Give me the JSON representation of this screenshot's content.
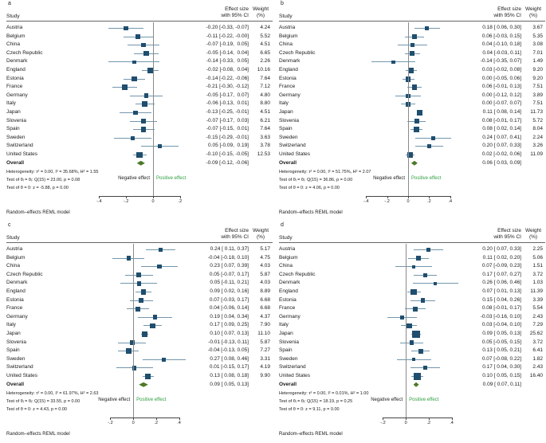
{
  "figure": {
    "colors": {
      "marker": "#1f4e6e",
      "ci": "#7396ad",
      "diamond": "#4c7a28",
      "positive": "#2e9e40",
      "zero": "#8a8a8a"
    }
  },
  "chart_data": [
    {
      "type": "forest",
      "letter": "a",
      "col_study": "Study",
      "col_effect": [
        "Effect size",
        "with 95% CI"
      ],
      "col_weight": [
        "Weight",
        "(%)"
      ],
      "xlim": [
        -0.52,
        0.26
      ],
      "tick_values": [
        -0.4,
        -0.2,
        0,
        0.2
      ],
      "tick_labels": [
        "-.4",
        "-.2",
        "0",
        ".2"
      ],
      "studies": [
        {
          "label": "Austria",
          "est": -0.2,
          "lo": -0.33,
          "hi": -0.07,
          "effect_label": "-0.20 [-0.33, -0.07]",
          "weight": 4.24
        },
        {
          "label": "Belgium",
          "est": -0.11,
          "lo": -0.22,
          "hi": -0.0,
          "effect_label": "-0.11 [-0.22, -0.00]",
          "weight": 5.52
        },
        {
          "label": "China",
          "est": -0.07,
          "lo": -0.19,
          "hi": 0.05,
          "effect_label": "-0.07 [-0.19,  0.05]",
          "weight": 4.51
        },
        {
          "label": "Czech Republic",
          "est": -0.05,
          "lo": -0.14,
          "hi": 0.04,
          "effect_label": "-0.05 [-0.14,  0.04]",
          "weight": 6.65
        },
        {
          "label": "Denmark",
          "est": -0.14,
          "lo": -0.33,
          "hi": 0.05,
          "effect_label": "-0.14 [-0.33,  0.05]",
          "weight": 2.26
        },
        {
          "label": "England",
          "est": -0.02,
          "lo": -0.08,
          "hi": 0.04,
          "effect_label": "-0.02 [-0.08,  0.04]",
          "weight": 10.16
        },
        {
          "label": "Estonia",
          "est": -0.14,
          "lo": -0.22,
          "hi": -0.06,
          "effect_label": "-0.14 [-0.22, -0.06]",
          "weight": 7.64
        },
        {
          "label": "France",
          "est": -0.21,
          "lo": -0.3,
          "hi": -0.12,
          "effect_label": "-0.21 [-0.30, -0.12]",
          "weight": 7.12
        },
        {
          "label": "Germany",
          "est": -0.05,
          "lo": -0.17,
          "hi": 0.07,
          "effect_label": "-0.05 [-0.17,  0.07]",
          "weight": 4.8
        },
        {
          "label": "Italy",
          "est": -0.06,
          "lo": -0.13,
          "hi": 0.01,
          "effect_label": "-0.06 [-0.13,  0.01]",
          "weight": 8.8
        },
        {
          "label": "Japan",
          "est": -0.13,
          "lo": -0.25,
          "hi": -0.01,
          "effect_label": "-0.13 [-0.25, -0.01]",
          "weight": 4.51
        },
        {
          "label": "Slovenia",
          "est": -0.07,
          "lo": -0.17,
          "hi": 0.03,
          "effect_label": "-0.07 [-0.17,  0.03]",
          "weight": 6.21
        },
        {
          "label": "Spain",
          "est": -0.07,
          "lo": -0.15,
          "hi": 0.01,
          "effect_label": "-0.07 [-0.15,  0.01]",
          "weight": 7.64
        },
        {
          "label": "Sweden",
          "est": -0.15,
          "lo": -0.29,
          "hi": -0.01,
          "effect_label": "-0.15 [-0.29, -0.01]",
          "weight": 3.63
        },
        {
          "label": "Switzerland",
          "est": 0.05,
          "lo": -0.09,
          "hi": 0.19,
          "effect_label": " 0.05 [-0.09,  0.19]",
          "weight": 3.78
        },
        {
          "label": "United States",
          "est": -0.1,
          "lo": -0.15,
          "hi": -0.05,
          "effect_label": "-0.10 [-0.15, -0.05]",
          "weight": 12.53
        }
      ],
      "overall": {
        "label": "Overall",
        "est": -0.09,
        "lo": -0.12,
        "hi": -0.06,
        "effect_label": "-0.09 [-0.12, -0.06]"
      },
      "stats": [
        "Heterogeneity: τ² = 0.00, I² = 35.68%, H² = 1.55",
        "Test of θᵢ = θⱼ: Q(15) = 23.00, p = 0.08",
        "Test of θ = 0: z = -5.88, p = 0.00"
      ],
      "neg_label": "Negative effect",
      "pos_label": "Positive effect",
      "footer": "Random–effects REML model"
    },
    {
      "type": "forest",
      "letter": "b",
      "col_study": "Study",
      "col_effect": [
        "Effect size",
        "with 95% CI"
      ],
      "col_weight": [
        "Weight",
        "(%)"
      ],
      "xlim": [
        -0.5,
        0.5
      ],
      "tick_values": [
        -0.4,
        -0.2,
        0,
        0.2,
        0.4
      ],
      "tick_labels": [
        "-.4",
        "-.2",
        "0",
        ".2",
        ".4"
      ],
      "studies": [
        {
          "label": "Austria",
          "est": 0.18,
          "lo": 0.06,
          "hi": 0.3,
          "effect_label": " 0.18 [ 0.06, 0.30]",
          "weight": 3.67
        },
        {
          "label": "Belgium",
          "est": 0.06,
          "lo": -0.03,
          "hi": 0.15,
          "effect_label": " 0.06 [-0.03, 0.15]",
          "weight": 5.35
        },
        {
          "label": "China",
          "est": 0.04,
          "lo": -0.1,
          "hi": 0.18,
          "effect_label": " 0.04 [-0.10, 0.18]",
          "weight": 3.08
        },
        {
          "label": "Czech Republic",
          "est": 0.04,
          "lo": -0.03,
          "hi": 0.11,
          "effect_label": " 0.04 [-0.03, 0.11]",
          "weight": 7.01
        },
        {
          "label": "Denmark",
          "est": -0.14,
          "lo": -0.35,
          "hi": 0.07,
          "effect_label": "-0.14 [-0.35, 0.07]",
          "weight": 1.49
        },
        {
          "label": "England",
          "est": 0.03,
          "lo": -0.02,
          "hi": 0.08,
          "effect_label": " 0.03 [-0.02, 0.08]",
          "weight": 9.2
        },
        {
          "label": "Estonia",
          "est": 0.0,
          "lo": -0.05,
          "hi": 0.06,
          "effect_label": " 0.00 [-0.05, 0.06]",
          "weight": 9.2
        },
        {
          "label": "France",
          "est": 0.06,
          "lo": -0.01,
          "hi": 0.13,
          "effect_label": " 0.06 [-0.01, 0.13]",
          "weight": 7.51
        },
        {
          "label": "Germany",
          "est": 0.0,
          "lo": -0.12,
          "hi": 0.12,
          "effect_label": " 0.00 [-0.12, 0.12]",
          "weight": 3.89
        },
        {
          "label": "Italy",
          "est": 0.0,
          "lo": -0.07,
          "hi": 0.07,
          "effect_label": " 0.00 [-0.07, 0.07]",
          "weight": 7.51
        },
        {
          "label": "Japan",
          "est": 0.11,
          "lo": 0.08,
          "hi": 0.14,
          "effect_label": " 0.11 [ 0.08, 0.14]",
          "weight": 11.73
        },
        {
          "label": "Slovenia",
          "est": 0.08,
          "lo": -0.01,
          "hi": 0.17,
          "effect_label": " 0.08 [-0.01, 0.17]",
          "weight": 5.72
        },
        {
          "label": "Spain",
          "est": 0.08,
          "lo": 0.02,
          "hi": 0.14,
          "effect_label": " 0.08 [ 0.02, 0.14]",
          "weight": 8.04
        },
        {
          "label": "Sweden",
          "est": 0.24,
          "lo": 0.07,
          "hi": 0.41,
          "effect_label": " 0.24 [ 0.07, 0.41]",
          "weight": 2.24
        },
        {
          "label": "Switzerland",
          "est": 0.2,
          "lo": 0.07,
          "hi": 0.33,
          "effect_label": " 0.20 [ 0.07, 0.33]",
          "weight": 3.26
        },
        {
          "label": "United States",
          "est": 0.02,
          "lo": -0.02,
          "hi": 0.06,
          "effect_label": " 0.02 [-0.02, 0.06]",
          "weight": 11.09
        }
      ],
      "overall": {
        "label": "Overall",
        "est": 0.06,
        "lo": 0.03,
        "hi": 0.09,
        "effect_label": " 0.06 [ 0.03, 0.09]"
      },
      "stats": [
        "Heterogeneity: τ² = 0.00, I² = 51.75%, H² = 2.07",
        "Test of θᵢ = θⱼ: Q(15) = 36.86, p = 0.00",
        "Test of θ = 0: z = 4.06, p = 0.00"
      ],
      "neg_label": "Negative effect",
      "pos_label": "Positive effect",
      "footer": "Random–effects REML model"
    },
    {
      "type": "forest",
      "letter": "c",
      "col_study": "Study",
      "col_effect": [
        "Effect size",
        "with 95% CI"
      ],
      "col_weight": [
        "Weight",
        "(%)"
      ],
      "xlim": [
        -0.44,
        0.48
      ],
      "tick_values": [
        -0.2,
        0,
        0.2,
        0.4
      ],
      "tick_labels": [
        "-.2",
        "0",
        ".2",
        ".4"
      ],
      "studies": [
        {
          "label": "Austria",
          "est": 0.24,
          "lo": 0.11,
          "hi": 0.37,
          "effect_label": " 0.24 [ 0.11, 0.37]",
          "weight": 5.17
        },
        {
          "label": "Belgium",
          "est": -0.04,
          "lo": -0.18,
          "hi": 0.1,
          "effect_label": "-0.04 [-0.18, 0.10]",
          "weight": 4.75
        },
        {
          "label": "China",
          "est": 0.23,
          "lo": 0.07,
          "hi": 0.39,
          "effect_label": " 0.23 [ 0.07, 0.39]",
          "weight": 4.03
        },
        {
          "label": "Czech Republic",
          "est": 0.05,
          "lo": -0.07,
          "hi": 0.17,
          "effect_label": " 0.05 [-0.07, 0.17]",
          "weight": 5.87
        },
        {
          "label": "Denmark",
          "est": 0.05,
          "lo": -0.11,
          "hi": 0.21,
          "effect_label": " 0.05 [-0.11, 0.21]",
          "weight": 4.03
        },
        {
          "label": "England",
          "est": 0.09,
          "lo": 0.02,
          "hi": 0.16,
          "effect_label": " 0.09 [ 0.02, 0.16]",
          "weight": 8.89
        },
        {
          "label": "Estonia",
          "est": 0.07,
          "lo": -0.03,
          "hi": 0.17,
          "effect_label": " 0.07 [-0.03, 0.17]",
          "weight": 6.68
        },
        {
          "label": "France",
          "est": 0.04,
          "lo": -0.06,
          "hi": 0.14,
          "effect_label": " 0.04 [-0.06, 0.14]",
          "weight": 6.68
        },
        {
          "label": "Germany",
          "est": 0.19,
          "lo": 0.04,
          "hi": 0.34,
          "effect_label": " 0.19 [ 0.04, 0.34]",
          "weight": 4.37
        },
        {
          "label": "Italy",
          "est": 0.17,
          "lo": 0.09,
          "hi": 0.25,
          "effect_label": " 0.17 [ 0.09, 0.25]",
          "weight": 7.9
        },
        {
          "label": "Japan",
          "est": 0.1,
          "lo": 0.07,
          "hi": 0.13,
          "effect_label": " 0.10 [ 0.07, 0.13]",
          "weight": 11.1
        },
        {
          "label": "Slovenia",
          "est": -0.01,
          "lo": -0.13,
          "hi": 0.11,
          "effect_label": "-0.01 [-0.13, 0.11]",
          "weight": 5.87
        },
        {
          "label": "Spain",
          "est": -0.04,
          "lo": -0.13,
          "hi": 0.05,
          "effect_label": "-0.04 [-0.13, 0.05]",
          "weight": 7.27
        },
        {
          "label": "Sweden",
          "est": 0.27,
          "lo": 0.08,
          "hi": 0.46,
          "effect_label": " 0.27 [ 0.08, 0.46]",
          "weight": 3.31
        },
        {
          "label": "Switzerland",
          "est": 0.01,
          "lo": -0.15,
          "hi": 0.17,
          "effect_label": " 0.01 [-0.15, 0.17]",
          "weight": 4.19
        },
        {
          "label": "United States",
          "est": 0.13,
          "lo": 0.08,
          "hi": 0.18,
          "effect_label": " 0.13 [ 0.08, 0.18]",
          "weight": 9.9
        }
      ],
      "overall": {
        "label": "Overall",
        "est": 0.09,
        "lo": 0.05,
        "hi": 0.13,
        "effect_label": " 0.09 [ 0.05, 0.13]"
      },
      "stats": [
        "Heterogeneity: τ² = 0.00, I² = 61.97%, H² = 2.63",
        "Test of θᵢ = θⱼ: Q(15) = 33.55, p = 0.00",
        "Test of θ = 0: z = 4.43, p = 0.00"
      ],
      "neg_label": "Negative effect",
      "pos_label": "Positive effect",
      "footer": "Random–effects REML model"
    },
    {
      "type": "forest",
      "letter": "d",
      "col_study": "Study",
      "col_effect": [
        "Effect size",
        "with 95% CI"
      ],
      "col_weight": [
        "Weight",
        "(%)"
      ],
      "xlim": [
        -0.44,
        0.48
      ],
      "tick_values": [
        -0.2,
        0,
        0.2,
        0.4
      ],
      "tick_labels": [
        "-.2",
        "0",
        ".2",
        ".4"
      ],
      "studies": [
        {
          "label": "Austria",
          "est": 0.2,
          "lo": 0.07,
          "hi": 0.33,
          "effect_label": " 0.20 [ 0.07, 0.33]",
          "weight": 2.25
        },
        {
          "label": "Belgium",
          "est": 0.11,
          "lo": 0.02,
          "hi": 0.2,
          "effect_label": " 0.11 [ 0.02, 0.20]",
          "weight": 5.06
        },
        {
          "label": "China",
          "est": 0.07,
          "lo": -0.09,
          "hi": 0.23,
          "effect_label": " 0.07 [-0.09, 0.23]",
          "weight": 1.51
        },
        {
          "label": "Czech Republic",
          "est": 0.17,
          "lo": 0.07,
          "hi": 0.27,
          "effect_label": " 0.17 [ 0.07, 0.27]",
          "weight": 3.72
        },
        {
          "label": "Denmark",
          "est": 0.26,
          "lo": 0.06,
          "hi": 0.46,
          "effect_label": " 0.26 [ 0.06, 0.46]",
          "weight": 1.03
        },
        {
          "label": "England",
          "est": 0.07,
          "lo": 0.01,
          "hi": 0.13,
          "effect_label": " 0.07 [ 0.01, 0.13]",
          "weight": 11.39
        },
        {
          "label": "Estonia",
          "est": 0.15,
          "lo": 0.04,
          "hi": 0.26,
          "effect_label": " 0.15 [ 0.04, 0.26]",
          "weight": 3.39
        },
        {
          "label": "France",
          "est": 0.08,
          "lo": -0.01,
          "hi": 0.17,
          "effect_label": " 0.08 [-0.01, 0.17]",
          "weight": 5.54
        },
        {
          "label": "Germany",
          "est": -0.03,
          "lo": -0.16,
          "hi": 0.1,
          "effect_label": "-0.03 [-0.16, 0.10]",
          "weight": 2.43
        },
        {
          "label": "Italy",
          "est": 0.03,
          "lo": -0.04,
          "hi": 0.1,
          "effect_label": " 0.03 [-0.04, 0.10]",
          "weight": 7.29
        },
        {
          "label": "Japan",
          "est": 0.09,
          "lo": 0.05,
          "hi": 0.13,
          "effect_label": " 0.09 [ 0.05, 0.13]",
          "weight": 25.62
        },
        {
          "label": "Slovenia",
          "est": 0.05,
          "lo": -0.05,
          "hi": 0.15,
          "effect_label": " 0.05 [-0.05, 0.15]",
          "weight": 3.72
        },
        {
          "label": "Spain",
          "est": 0.13,
          "lo": 0.05,
          "hi": 0.21,
          "effect_label": " 0.13 [ 0.05, 0.21]",
          "weight": 6.41
        },
        {
          "label": "Sweden",
          "est": 0.07,
          "lo": -0.08,
          "hi": 0.22,
          "effect_label": " 0.07 [-0.08, 0.22]",
          "weight": 1.82
        },
        {
          "label": "Switzerland",
          "est": 0.17,
          "lo": 0.04,
          "hi": 0.3,
          "effect_label": " 0.17 [ 0.04, 0.30]",
          "weight": 2.43
        },
        {
          "label": "United States",
          "est": 0.1,
          "lo": 0.05,
          "hi": 0.15,
          "effect_label": " 0.10 [ 0.05, 0.15]",
          "weight": 16.4
        }
      ],
      "overall": {
        "label": "Overall",
        "est": 0.09,
        "lo": 0.07,
        "hi": 0.11,
        "effect_label": " 0.09 [ 0.07, 0.11]"
      },
      "stats": [
        "Heterogeneity: τ² = 0.00, I² = 0.01%, H² = 1.00",
        "Test of θᵢ = θⱼ: Q(15) = 18.19, p = 0.25",
        "Test of θ = 0: z = 9.11, p = 0.00"
      ],
      "neg_label": "Negative effect",
      "pos_label": "Positive effect",
      "footer": "Random–effects REML model"
    }
  ]
}
